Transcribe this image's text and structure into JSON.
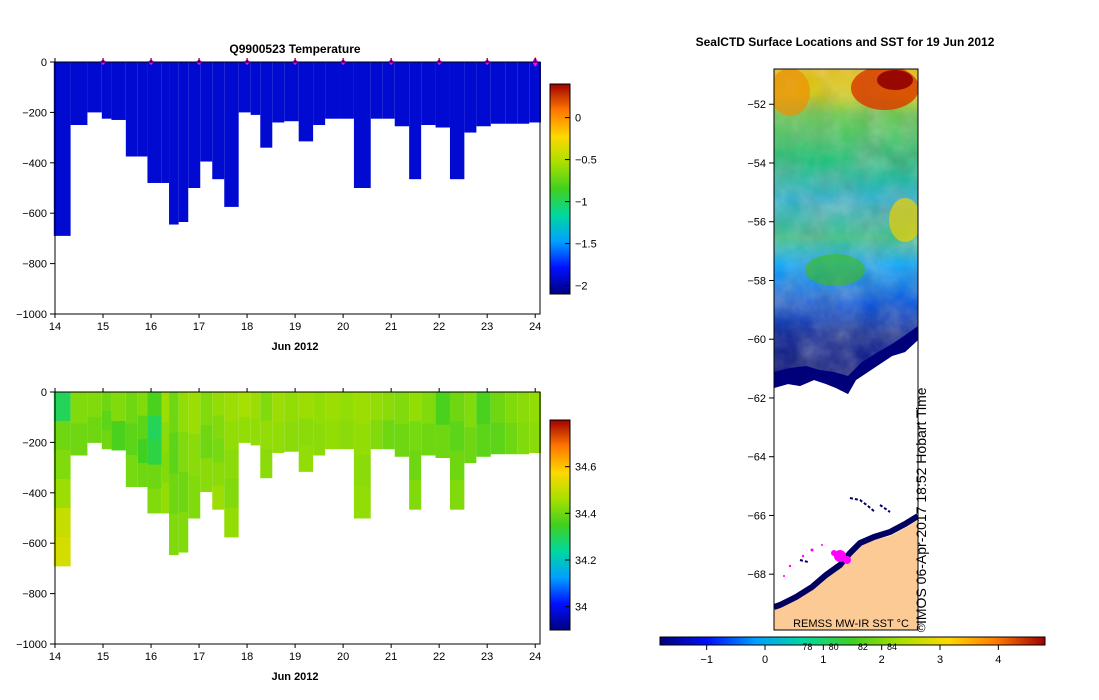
{
  "chart_data": [
    {
      "type": "heatmap",
      "title": "Q9900523  Temperature",
      "xlabel": "Jun 2012",
      "x_ticks": [
        "14",
        "15",
        "16",
        "17",
        "18",
        "19",
        "20",
        "21",
        "22",
        "23",
        "24"
      ],
      "y_ticks": [
        "0",
        "−200",
        "−400",
        "−600",
        "−800",
        "−1000"
      ],
      "xlim": [
        14,
        24.1
      ],
      "ylim": [
        -1000,
        0
      ],
      "colorbar": {
        "ticks": [
          "0",
          "−0.5",
          "−1",
          "−1.5",
          "−2"
        ],
        "tick_values": [
          0,
          -0.5,
          -1,
          -1.5,
          -2
        ],
        "range": [
          -2.1,
          0.4
        ]
      },
      "dominant_value": -1.9,
      "profile_markers": [
        15,
        16,
        17,
        18,
        19,
        20,
        21,
        22,
        23,
        24
      ],
      "profiles": [
        {
          "day": 14.1,
          "depth": 690
        },
        {
          "day": 14.45,
          "depth": 250
        },
        {
          "day": 14.8,
          "depth": 200
        },
        {
          "day": 15.1,
          "depth": 225
        },
        {
          "day": 15.3,
          "depth": 230
        },
        {
          "day": 15.6,
          "depth": 375
        },
        {
          "day": 15.85,
          "depth": 375
        },
        {
          "day": 16.05,
          "depth": 480
        },
        {
          "day": 16.35,
          "depth": 480
        },
        {
          "day": 16.5,
          "depth": 645
        },
        {
          "day": 16.7,
          "depth": 635
        },
        {
          "day": 16.9,
          "depth": 500
        },
        {
          "day": 17.15,
          "depth": 395
        },
        {
          "day": 17.4,
          "depth": 465
        },
        {
          "day": 17.65,
          "depth": 575
        },
        {
          "day": 17.95,
          "depth": 200
        },
        {
          "day": 18.2,
          "depth": 210
        },
        {
          "day": 18.4,
          "depth": 340
        },
        {
          "day": 18.65,
          "depth": 240
        },
        {
          "day": 18.9,
          "depth": 235
        },
        {
          "day": 19.2,
          "depth": 315
        },
        {
          "day": 19.5,
          "depth": 250
        },
        {
          "day": 19.75,
          "depth": 225
        },
        {
          "day": 20.05,
          "depth": 225
        },
        {
          "day": 20.35,
          "depth": 500
        },
        {
          "day": 20.7,
          "depth": 225
        },
        {
          "day": 20.95,
          "depth": 225
        },
        {
          "day": 21.2,
          "depth": 255
        },
        {
          "day": 21.5,
          "depth": 465
        },
        {
          "day": 21.75,
          "depth": 250
        },
        {
          "day": 22.05,
          "depth": 260
        },
        {
          "day": 22.35,
          "depth": 465
        },
        {
          "day": 22.65,
          "depth": 280
        },
        {
          "day": 22.9,
          "depth": 255
        },
        {
          "day": 23.2,
          "depth": 245
        },
        {
          "day": 23.5,
          "depth": 245
        },
        {
          "day": 23.75,
          "depth": 245
        },
        {
          "day": 24.0,
          "depth": 240
        }
      ]
    },
    {
      "type": "heatmap",
      "title": "",
      "xlabel": "Jun 2012",
      "x_ticks": [
        "14",
        "15",
        "16",
        "17",
        "18",
        "19",
        "20",
        "21",
        "22",
        "23",
        "24"
      ],
      "y_ticks": [
        "0",
        "−200",
        "−400",
        "−600",
        "−800",
        "−1000"
      ],
      "xlim": [
        14,
        24.1
      ],
      "ylim": [
        -1000,
        0
      ],
      "colorbar": {
        "ticks": [
          "34.6",
          "34.4",
          "34.2",
          "34"
        ],
        "tick_values": [
          34.6,
          34.4,
          34.2,
          34.0
        ],
        "range": [
          33.9,
          34.8
        ]
      },
      "profile_values": [
        [
          34.3,
          34.4,
          34.42,
          34.45,
          34.5,
          34.52
        ],
        [
          34.42,
          34.4
        ],
        [
          34.42,
          34.4
        ],
        [
          34.4,
          34.38,
          34.4
        ],
        [
          34.42,
          34.36
        ],
        [
          34.4,
          34.38,
          34.41
        ],
        [
          34.42,
          34.38,
          34.35,
          34.4
        ],
        [
          34.36,
          34.3,
          34.32,
          34.4,
          34.42
        ],
        [
          34.45,
          34.43,
          34.42,
          34.44
        ],
        [
          34.4,
          34.38,
          34.4,
          34.42
        ],
        [
          34.44,
          34.42,
          34.4,
          34.42
        ],
        [
          34.45,
          34.43,
          34.42
        ],
        [
          34.42,
          34.4,
          34.43
        ],
        [
          34.44,
          34.42,
          34.41,
          34.43,
          34.45
        ],
        [
          34.45,
          34.44,
          34.43,
          34.42,
          34.44
        ],
        [
          34.46,
          34.44
        ],
        [
          34.45,
          34.44
        ],
        [
          34.42,
          34.44,
          34.43
        ],
        [
          34.45,
          34.44
        ],
        [
          34.44,
          34.43
        ],
        [
          34.45,
          34.43,
          34.44
        ],
        [
          34.44,
          34.43
        ],
        [
          34.45,
          34.44
        ],
        [
          34.44,
          34.43
        ],
        [
          34.45,
          34.44,
          34.43,
          34.44
        ],
        [
          34.44,
          34.42
        ],
        [
          34.43,
          34.4
        ],
        [
          34.42,
          34.4
        ],
        [
          34.44,
          34.41,
          34.4,
          34.42
        ],
        [
          34.42,
          34.4
        ],
        [
          34.36,
          34.4
        ],
        [
          34.4,
          34.38,
          34.4,
          34.42
        ],
        [
          34.42,
          34.4
        ],
        [
          34.36,
          34.38
        ],
        [
          34.4,
          34.38
        ],
        [
          34.42,
          34.4
        ],
        [
          34.43,
          34.42
        ],
        [
          34.44,
          34.43
        ]
      ]
    },
    {
      "type": "heatmap",
      "title": "SealCTD Surface Locations and SST for 19 Jun 2012",
      "y_ticks": [
        "−52",
        "−54",
        "−56",
        "−58",
        "−60",
        "−62",
        "−64",
        "−66",
        "−68"
      ],
      "y_tick_values": [
        -52,
        -54,
        -56,
        -58,
        -60,
        -62,
        -64,
        -66,
        -68
      ],
      "ylim": [
        -69.9,
        -50.8
      ],
      "ice_edge_lat": -61.8,
      "colorbar": {
        "ticks": [
          "−1",
          "0",
          "1",
          "2",
          "3",
          "4"
        ],
        "tick_values": [
          -1,
          0,
          1,
          2,
          3,
          4
        ],
        "range": [
          -1.8,
          4.8
        ],
        "secondary_ticks": [
          "78",
          "80",
          "82",
          "84"
        ],
        "secondary_tick_values": [
          0.35,
          0.8,
          1.3,
          1.8
        ]
      },
      "label": "REMSS MW-IR SST °C",
      "credit": "IMOS 06-Apr-2017 18:52 Hobart Time",
      "copyright": "©"
    }
  ]
}
